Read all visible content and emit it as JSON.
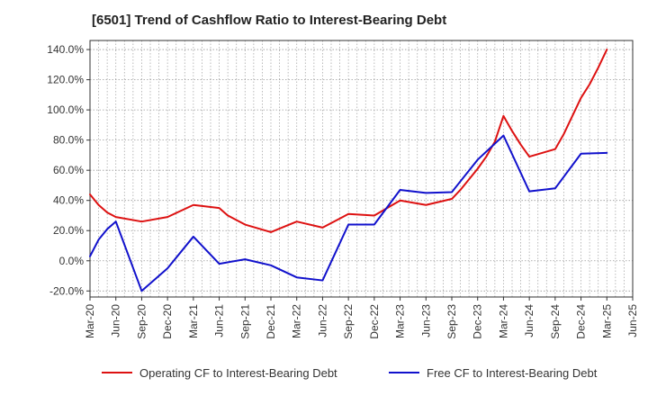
{
  "chart_data": {
    "type": "line",
    "title": "[6501]  Trend of Cashflow Ratio to Interest-Bearing Debt",
    "xlabel": "",
    "ylabel": "",
    "x_ticks": [
      "Mar-20",
      "Jun-20",
      "Sep-20",
      "Dec-20",
      "Mar-21",
      "Jun-21",
      "Sep-21",
      "Dec-21",
      "Mar-22",
      "Jun-22",
      "Sep-22",
      "Dec-22",
      "Mar-23",
      "Jun-23",
      "Sep-23",
      "Dec-23",
      "Mar-24",
      "Jun-24",
      "Sep-24",
      "Dec-24",
      "Mar-25",
      "Jun-25"
    ],
    "y_ticks": [
      "140.0%",
      "120.0%",
      "100.0%",
      "80.0%",
      "60.0%",
      "40.0%",
      "20.0%",
      "0.0%",
      "-20.0%"
    ],
    "ylim": [
      -24,
      146
    ],
    "grid": true,
    "legend_position": "bottom",
    "series": [
      {
        "name": "Operating CF to Interest-Bearing Debt",
        "color": "#dd1111",
        "points": [
          [
            "Mar-20",
            44
          ],
          [
            "Apr-20",
            37
          ],
          [
            "May-20",
            32
          ],
          [
            "Jun-20",
            29
          ],
          [
            "Sep-20",
            26
          ],
          [
            "Dec-20",
            29
          ],
          [
            "Mar-21",
            37
          ],
          [
            "Jun-21",
            35
          ],
          [
            "Jul-21",
            30
          ],
          [
            "Aug-21",
            27
          ],
          [
            "Sep-21",
            24
          ],
          [
            "Dec-21",
            19
          ],
          [
            "Mar-22",
            26
          ],
          [
            "Jun-22",
            22
          ],
          [
            "Sep-22",
            31
          ],
          [
            "Dec-22",
            30
          ],
          [
            "Mar-23",
            40
          ],
          [
            "Jun-23",
            37
          ],
          [
            "Sep-23",
            41
          ],
          [
            "Oct-23",
            47
          ],
          [
            "Nov-23",
            54
          ],
          [
            "Dec-23",
            61
          ],
          [
            "Jan-24",
            69
          ],
          [
            "Feb-24",
            79
          ],
          [
            "Mar-24",
            96
          ],
          [
            "Apr-24",
            86
          ],
          [
            "May-24",
            77
          ],
          [
            "Jun-24",
            69
          ],
          [
            "Sep-24",
            74
          ],
          [
            "Oct-24",
            84
          ],
          [
            "Nov-24",
            96
          ],
          [
            "Dec-24",
            108
          ],
          [
            "Jan-25",
            117
          ],
          [
            "Feb-25",
            128
          ],
          [
            "Mar-25",
            140
          ]
        ]
      },
      {
        "name": "Free CF to Interest-Bearing Debt",
        "color": "#1111cc",
        "points": [
          [
            "Mar-20",
            3
          ],
          [
            "Apr-20",
            14
          ],
          [
            "May-20",
            21
          ],
          [
            "Jun-20",
            26
          ],
          [
            "Sep-20",
            -20
          ],
          [
            "Dec-20",
            -5
          ],
          [
            "Mar-21",
            16
          ],
          [
            "Jun-21",
            -2
          ],
          [
            "Sep-21",
            1
          ],
          [
            "Dec-21",
            -3
          ],
          [
            "Mar-22",
            -11
          ],
          [
            "Jun-22",
            -13
          ],
          [
            "Sep-22",
            24
          ],
          [
            "Dec-22",
            24
          ],
          [
            "Mar-23",
            47
          ],
          [
            "Jun-23",
            45
          ],
          [
            "Sep-23",
            45.5
          ],
          [
            "Dec-23",
            67
          ],
          [
            "Mar-24",
            83
          ],
          [
            "Jun-24",
            46
          ],
          [
            "Sep-24",
            48
          ],
          [
            "Dec-24",
            71
          ],
          [
            "Mar-25",
            71.5
          ]
        ]
      }
    ]
  }
}
